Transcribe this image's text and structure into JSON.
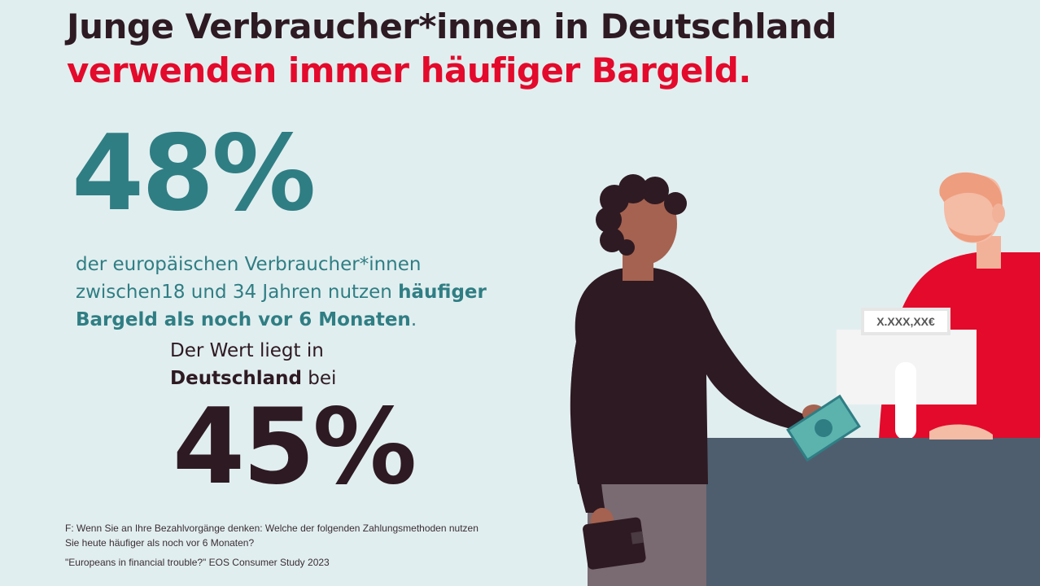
{
  "title": {
    "line1": "Junge Verbraucher*innen in Deutschland",
    "line2": "verwenden immer häufiger Bargeld."
  },
  "europe": {
    "percent": "48%",
    "text_part1": "der europäischen Verbraucher*innen zwischen18 und 34 Jahren nutzen ",
    "text_bold": "häufiger Bargeld als noch vor 6 Monaten",
    "text_end": "."
  },
  "germany": {
    "text_part1": "Der Wert liegt in ",
    "text_bold": "Deutschland",
    "text_part2": " bei",
    "percent": "45%"
  },
  "footnote": {
    "question": "F: Wenn Sie an Ihre Bezahlvorgänge denken: Welche der folgenden Zahlungsmethoden nutzen Sie heute häufiger als noch vor 6 Monaten?",
    "source": "\"Europeans in financial trouble?\" EOS Consumer Study 2023"
  },
  "illustration": {
    "register_display": "X.XXX,XX€",
    "colors": {
      "background": "#e1eeef",
      "teal": "#2f7e84",
      "red": "#e30a2b",
      "dark": "#2e1a22",
      "counter": "#4f5e6e"
    }
  }
}
